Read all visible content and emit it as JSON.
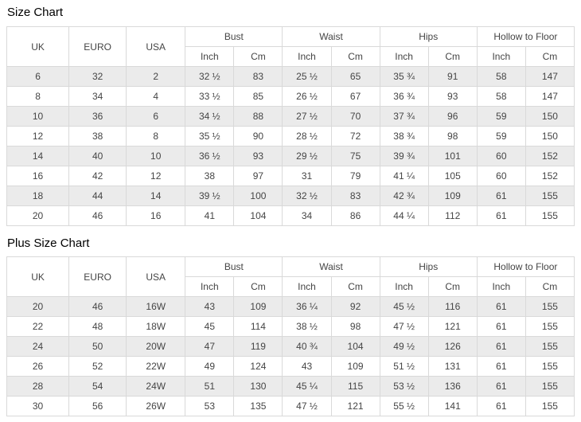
{
  "tables": [
    {
      "title": "Size Chart",
      "plain_columns": [
        "UK",
        "EURO",
        "USA"
      ],
      "group_columns": [
        "Bust",
        "Waist",
        "Hips",
        "Hollow to Floor"
      ],
      "unit_columns": [
        "Inch",
        "Cm"
      ],
      "rows": [
        [
          "6",
          "32",
          "2",
          "32 ½",
          "83",
          "25 ½",
          "65",
          "35 ¾",
          "91",
          "58",
          "147"
        ],
        [
          "8",
          "34",
          "4",
          "33 ½",
          "85",
          "26 ½",
          "67",
          "36 ¾",
          "93",
          "58",
          "147"
        ],
        [
          "10",
          "36",
          "6",
          "34 ½",
          "88",
          "27 ½",
          "70",
          "37 ¾",
          "96",
          "59",
          "150"
        ],
        [
          "12",
          "38",
          "8",
          "35 ½",
          "90",
          "28 ½",
          "72",
          "38 ¾",
          "98",
          "59",
          "150"
        ],
        [
          "14",
          "40",
          "10",
          "36 ½",
          "93",
          "29 ½",
          "75",
          "39 ¾",
          "101",
          "60",
          "152"
        ],
        [
          "16",
          "42",
          "12",
          "38",
          "97",
          "31",
          "79",
          "41 ¼",
          "105",
          "60",
          "152"
        ],
        [
          "18",
          "44",
          "14",
          "39 ½",
          "100",
          "32 ½",
          "83",
          "42 ¾",
          "109",
          "61",
          "155"
        ],
        [
          "20",
          "46",
          "16",
          "41",
          "104",
          "34",
          "86",
          "44 ¼",
          "112",
          "61",
          "155"
        ]
      ]
    },
    {
      "title": "Plus Size Chart",
      "plain_columns": [
        "UK",
        "EURO",
        "USA"
      ],
      "group_columns": [
        "Bust",
        "Waist",
        "Hips",
        "Hollow to Floor"
      ],
      "unit_columns": [
        "Inch",
        "Cm"
      ],
      "rows": [
        [
          "20",
          "46",
          "16W",
          "43",
          "109",
          "36 ¼",
          "92",
          "45 ½",
          "116",
          "61",
          "155"
        ],
        [
          "22",
          "48",
          "18W",
          "45",
          "114",
          "38 ½",
          "98",
          "47 ½",
          "121",
          "61",
          "155"
        ],
        [
          "24",
          "50",
          "20W",
          "47",
          "119",
          "40 ¾",
          "104",
          "49 ½",
          "126",
          "61",
          "155"
        ],
        [
          "26",
          "52",
          "22W",
          "49",
          "124",
          "43",
          "109",
          "51 ½",
          "131",
          "61",
          "155"
        ],
        [
          "28",
          "54",
          "24W",
          "51",
          "130",
          "45 ¼",
          "115",
          "53 ½",
          "136",
          "61",
          "155"
        ],
        [
          "30",
          "56",
          "26W",
          "53",
          "135",
          "47 ½",
          "121",
          "55 ½",
          "141",
          "61",
          "155"
        ]
      ]
    }
  ],
  "colors": {
    "row_stripe": "#ebebeb",
    "table_border": "#d9d9d9",
    "cell_text": "#454545",
    "title_text": "#000000"
  }
}
